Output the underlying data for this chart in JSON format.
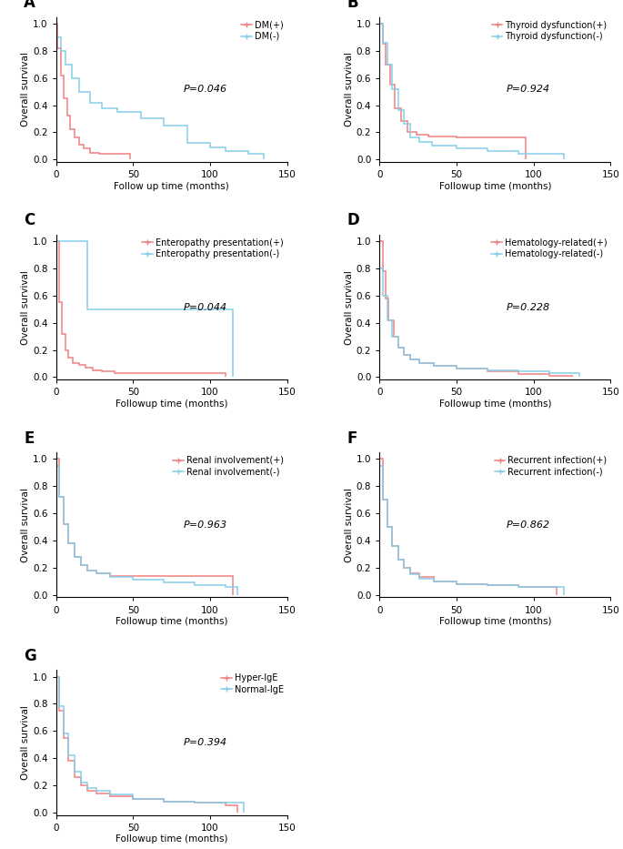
{
  "panels": [
    {
      "label": "A",
      "xlabel": "Follow up time (months)",
      "ylabel": "Overall survival",
      "pvalue": "P=0.046",
      "legend": [
        "DM(+)",
        "DM(-)"
      ],
      "colors": [
        "#F08080",
        "#87CEEB"
      ],
      "curves": [
        {
          "x": [
            0,
            1,
            3,
            5,
            7,
            9,
            12,
            15,
            18,
            22,
            28,
            35,
            42,
            48,
            48
          ],
          "y": [
            1.0,
            0.82,
            0.62,
            0.45,
            0.32,
            0.22,
            0.16,
            0.11,
            0.08,
            0.05,
            0.04,
            0.04,
            0.04,
            0.04,
            0.0
          ]
        },
        {
          "x": [
            0,
            3,
            6,
            10,
            15,
            22,
            30,
            40,
            55,
            70,
            85,
            100,
            110,
            125,
            135,
            135
          ],
          "y": [
            0.9,
            0.8,
            0.7,
            0.6,
            0.5,
            0.42,
            0.38,
            0.35,
            0.3,
            0.25,
            0.12,
            0.09,
            0.06,
            0.04,
            0.04,
            0.0
          ]
        }
      ],
      "censors": [
        {
          "x": [],
          "y": []
        },
        {
          "x": [],
          "y": []
        }
      ],
      "xlim": [
        0,
        150
      ],
      "ylim": [
        -0.02,
        1.05
      ],
      "xticks": [
        0,
        50,
        100,
        150
      ],
      "yticks": [
        0.0,
        0.2,
        0.4,
        0.6,
        0.8,
        1.0
      ]
    },
    {
      "label": "B",
      "xlabel": "Followup time (months)",
      "ylabel": "Overall survival",
      "pvalue": "P=0.924",
      "legend": [
        "Thyroid dysfunction(+)",
        "Thyroid dysfunction(-)"
      ],
      "colors": [
        "#F08080",
        "#87CEEB"
      ],
      "curves": [
        {
          "x": [
            0,
            2,
            4,
            7,
            10,
            14,
            18,
            24,
            32,
            50,
            90,
            95,
            95
          ],
          "y": [
            1.0,
            0.85,
            0.7,
            0.55,
            0.38,
            0.28,
            0.2,
            0.18,
            0.17,
            0.16,
            0.16,
            0.16,
            0.0
          ]
        },
        {
          "x": [
            0,
            2,
            5,
            8,
            12,
            16,
            20,
            26,
            34,
            50,
            70,
            90,
            110,
            120,
            120
          ],
          "y": [
            1.0,
            0.86,
            0.7,
            0.52,
            0.36,
            0.26,
            0.16,
            0.13,
            0.1,
            0.08,
            0.06,
            0.04,
            0.04,
            0.04,
            0.0
          ]
        }
      ],
      "censors": [
        {
          "x": [],
          "y": []
        },
        {
          "x": [],
          "y": []
        }
      ],
      "xlim": [
        0,
        150
      ],
      "ylim": [
        -0.02,
        1.05
      ],
      "xticks": [
        0,
        50,
        100,
        150
      ],
      "yticks": [
        0.0,
        0.2,
        0.4,
        0.6,
        0.8,
        1.0
      ]
    },
    {
      "label": "C",
      "xlabel": "Followup time (months)",
      "ylabel": "Overall survival",
      "pvalue": "P=0.044",
      "legend": [
        "Enteropathy presentation(+)",
        "Enteropathy presentation(-)"
      ],
      "colors": [
        "#F08080",
        "#87CEEB"
      ],
      "curves": [
        {
          "x": [
            0,
            2,
            4,
            6,
            8,
            11,
            15,
            19,
            24,
            30,
            38,
            100,
            105,
            110,
            110
          ],
          "y": [
            1.0,
            0.55,
            0.32,
            0.2,
            0.14,
            0.1,
            0.09,
            0.07,
            0.05,
            0.04,
            0.03,
            0.03,
            0.03,
            0.03,
            0.0
          ]
        },
        {
          "x": [
            0,
            20,
            20,
            110,
            115,
            115
          ],
          "y": [
            1.0,
            1.0,
            0.5,
            0.5,
            0.5,
            0.0
          ]
        }
      ],
      "censors": [
        {
          "x": [],
          "y": []
        },
        {
          "x": [],
          "y": []
        }
      ],
      "xlim": [
        0,
        150
      ],
      "ylim": [
        -0.02,
        1.05
      ],
      "xticks": [
        0,
        50,
        100,
        150
      ],
      "yticks": [
        0.0,
        0.2,
        0.4,
        0.6,
        0.8,
        1.0
      ]
    },
    {
      "label": "D",
      "xlabel": "Followup time (months)",
      "ylabel": "Overall survival",
      "pvalue": "P=0.228",
      "legend": [
        "Hematology-related(+)",
        "Hematology-related(-)"
      ],
      "colors": [
        "#F08080",
        "#87CEEB"
      ],
      "curves": [
        {
          "x": [
            0,
            2,
            4,
            6,
            9,
            12,
            16,
            20,
            26,
            35,
            50,
            70,
            90,
            110,
            125,
            125
          ],
          "y": [
            1.0,
            0.78,
            0.58,
            0.42,
            0.3,
            0.22,
            0.16,
            0.13,
            0.1,
            0.08,
            0.06,
            0.04,
            0.02,
            0.01,
            0.01,
            0.0
          ]
        },
        {
          "x": [
            0,
            2,
            5,
            8,
            12,
            16,
            20,
            26,
            35,
            50,
            70,
            90,
            110,
            125,
            130,
            130
          ],
          "y": [
            0.8,
            0.6,
            0.42,
            0.3,
            0.22,
            0.16,
            0.13,
            0.1,
            0.08,
            0.06,
            0.05,
            0.04,
            0.03,
            0.03,
            0.03,
            0.0
          ]
        }
      ],
      "censors": [
        {
          "x": [],
          "y": []
        },
        {
          "x": [],
          "y": []
        }
      ],
      "xlim": [
        0,
        150
      ],
      "ylim": [
        -0.02,
        1.05
      ],
      "xticks": [
        0,
        50,
        100,
        150
      ],
      "yticks": [
        0.0,
        0.2,
        0.4,
        0.6,
        0.8,
        1.0
      ]
    },
    {
      "label": "E",
      "xlabel": "Followup time (months)",
      "ylabel": "Overall survival",
      "pvalue": "P=0.963",
      "legend": [
        "Renal involvement(+)",
        "Renal involvement(-)"
      ],
      "colors": [
        "#F08080",
        "#87CEEB"
      ],
      "curves": [
        {
          "x": [
            0,
            2,
            5,
            8,
            12,
            16,
            20,
            26,
            35,
            50,
            70,
            90,
            110,
            115,
            115
          ],
          "y": [
            1.0,
            0.72,
            0.52,
            0.38,
            0.28,
            0.22,
            0.18,
            0.16,
            0.14,
            0.14,
            0.14,
            0.14,
            0.14,
            0.14,
            0.0
          ]
        },
        {
          "x": [
            0,
            2,
            5,
            8,
            12,
            16,
            20,
            26,
            35,
            50,
            70,
            90,
            110,
            118,
            118
          ],
          "y": [
            0.95,
            0.72,
            0.52,
            0.38,
            0.28,
            0.22,
            0.18,
            0.16,
            0.13,
            0.11,
            0.09,
            0.07,
            0.06,
            0.06,
            0.0
          ]
        }
      ],
      "censors": [
        {
          "x": [],
          "y": []
        },
        {
          "x": [],
          "y": []
        }
      ],
      "xlim": [
        0,
        150
      ],
      "ylim": [
        -0.02,
        1.05
      ],
      "xticks": [
        0,
        50,
        100,
        150
      ],
      "yticks": [
        0.0,
        0.2,
        0.4,
        0.6,
        0.8,
        1.0
      ]
    },
    {
      "label": "F",
      "xlabel": "Followup time (months)",
      "ylabel": "Overall survival",
      "pvalue": "P=0.862",
      "legend": [
        "Recurrent infection(+)",
        "Recurrent infection(-)"
      ],
      "colors": [
        "#F08080",
        "#87CEEB"
      ],
      "curves": [
        {
          "x": [
            0,
            2,
            5,
            8,
            12,
            16,
            20,
            26,
            35,
            50,
            70,
            90,
            110,
            115,
            115
          ],
          "y": [
            1.0,
            0.7,
            0.5,
            0.36,
            0.26,
            0.2,
            0.16,
            0.13,
            0.1,
            0.08,
            0.07,
            0.06,
            0.06,
            0.06,
            0.0
          ]
        },
        {
          "x": [
            0,
            2,
            5,
            8,
            12,
            16,
            20,
            26,
            35,
            50,
            70,
            90,
            110,
            120,
            120
          ],
          "y": [
            0.95,
            0.7,
            0.5,
            0.36,
            0.26,
            0.2,
            0.15,
            0.12,
            0.1,
            0.08,
            0.07,
            0.06,
            0.06,
            0.06,
            0.0
          ]
        }
      ],
      "censors": [
        {
          "x": [],
          "y": []
        },
        {
          "x": [],
          "y": []
        }
      ],
      "xlim": [
        0,
        150
      ],
      "ylim": [
        -0.02,
        1.05
      ],
      "xticks": [
        0,
        50,
        100,
        150
      ],
      "yticks": [
        0.0,
        0.2,
        0.4,
        0.6,
        0.8,
        1.0
      ]
    },
    {
      "label": "G",
      "xlabel": "Followup time (months)",
      "ylabel": "Overall survival",
      "pvalue": "P=0.394",
      "legend": [
        "Hyper-IgE",
        "Normal-IgE"
      ],
      "colors": [
        "#F08080",
        "#87CEEB"
      ],
      "curves": [
        {
          "x": [
            0,
            2,
            5,
            8,
            12,
            16,
            20,
            26,
            35,
            50,
            70,
            90,
            110,
            118,
            118
          ],
          "y": [
            1.0,
            0.75,
            0.55,
            0.38,
            0.26,
            0.2,
            0.16,
            0.14,
            0.12,
            0.1,
            0.08,
            0.07,
            0.05,
            0.05,
            0.0
          ]
        },
        {
          "x": [
            0,
            2,
            5,
            8,
            12,
            16,
            20,
            26,
            35,
            50,
            70,
            90,
            110,
            122,
            122
          ],
          "y": [
            1.0,
            0.78,
            0.58,
            0.42,
            0.3,
            0.22,
            0.18,
            0.16,
            0.13,
            0.1,
            0.08,
            0.07,
            0.07,
            0.07,
            0.0
          ]
        }
      ],
      "censors": [
        {
          "x": [],
          "y": []
        },
        {
          "x": [],
          "y": []
        }
      ],
      "xlim": [
        0,
        150
      ],
      "ylim": [
        -0.02,
        1.05
      ],
      "xticks": [
        0,
        50,
        100,
        150
      ],
      "yticks": [
        0.0,
        0.2,
        0.4,
        0.6,
        0.8,
        1.0
      ]
    }
  ],
  "background_color": "#ffffff",
  "line_width": 1.1,
  "font_size": 7.5,
  "label_font_size": 12,
  "pvalue_font_size": 8,
  "legend_font_size": 7
}
